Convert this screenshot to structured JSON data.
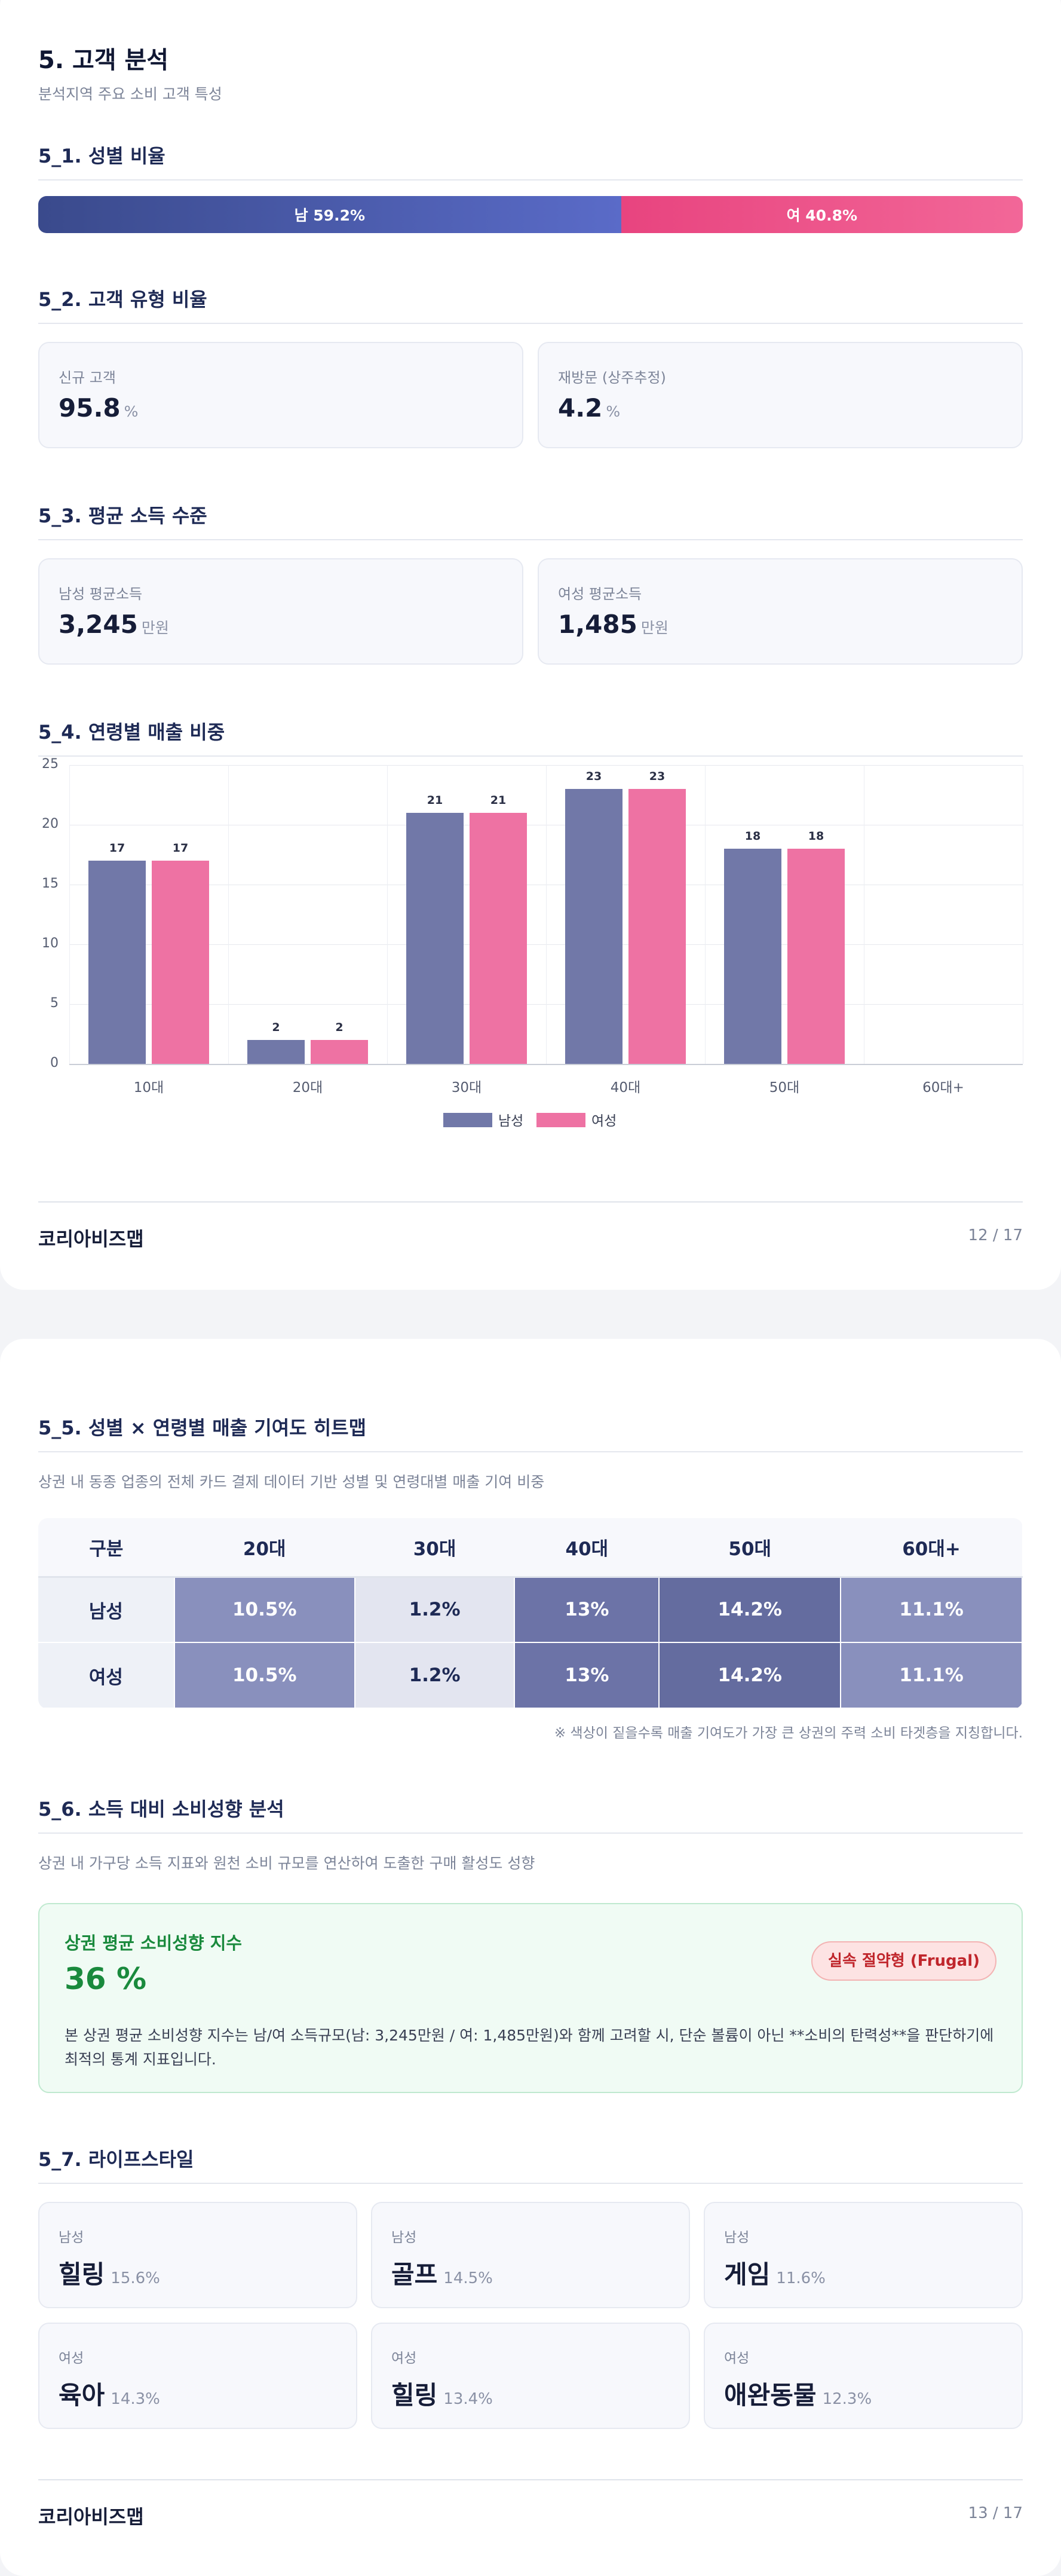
{
  "page1": {
    "title": "5. 고객 분석",
    "subtitle": "분석지역 주요 소비 고객 특성",
    "gender_ratio": {
      "heading": "5_1. 성별 비율",
      "male_label": "남 59.2%",
      "female_label": "여 40.8%",
      "male_value": 59.2,
      "female_value": 40.8
    },
    "customer_type": {
      "heading": "5_2. 고객 유형 비율",
      "new_label": "신규 고객",
      "new_value": "95.8",
      "new_unit": "%",
      "return_label": "재방문 (상주추정)",
      "return_value": "4.2",
      "return_unit": "%"
    },
    "income": {
      "heading": "5_3. 평균 소득 수준",
      "male_label": "남성 평균소득",
      "male_value": "3,245",
      "male_unit": "만원",
      "female_label": "여성 평균소득",
      "female_value": "1,485",
      "female_unit": "만원"
    },
    "age_sales_heading": "5_4. 연령별 매출 비중",
    "footer": {
      "brand": "코리아비즈맵",
      "page": "12 / 17"
    }
  },
  "chart_data": {
    "type": "bar",
    "categories": [
      "10대",
      "20대",
      "30대",
      "40대",
      "50대",
      "60대+"
    ],
    "series": [
      {
        "name": "남성",
        "values": [
          17,
          2,
          21,
          23,
          18,
          0
        ],
        "color": "#7178a8"
      },
      {
        "name": "여성",
        "values": [
          17,
          2,
          21,
          23,
          18,
          0
        ],
        "color": "#ee72a3"
      }
    ],
    "data_labels": [
      "17",
      "2",
      "21",
      "23",
      "18",
      ""
    ],
    "yticks": [
      "0",
      "5",
      "10",
      "15",
      "20",
      "25"
    ],
    "ylim": [
      0,
      25
    ],
    "grid": true,
    "legend_position": "bottom"
  },
  "page2": {
    "heatmap": {
      "heading": "5_5. 성별 × 연령별 매출 기여도 히트맵",
      "description": "상권 내 동종 업종의 전체 카드 결제 데이터 기반 성별 및 연령대별 매출 기여 비중",
      "columns": [
        "구분",
        "20대",
        "30대",
        "40대",
        "50대",
        "60대+"
      ],
      "rows": [
        {
          "label": "남성",
          "cells": [
            "10.5%",
            "1.2%",
            "13%",
            "14.2%",
            "11.1%"
          ]
        },
        {
          "label": "여성",
          "cells": [
            "10.5%",
            "1.2%",
            "13%",
            "14.2%",
            "11.1%"
          ]
        }
      ],
      "cell_colors": [
        "#8990bd",
        "#e3e5f0",
        "#6c73a7",
        "#646c9f",
        "#8990bd"
      ],
      "note": "※ 색상이 짙을수록 매출 기여도가 가장 큰 상권의 주력 소비 타겟층을 지칭합니다."
    },
    "propensity": {
      "heading": "5_6. 소득 대비 소비성향 분석",
      "description": "상권 내 가구당 소득 지표와 원천 소비 규모를 연산하여 도출한 구매 활성도 성향",
      "box_title": "상권 평균 소비성향 지수",
      "value": "36 %",
      "badge": "실속 절약형 (Frugal)",
      "body": "본 상권 평균 소비성향 지수는 남/여 소득규모(남: 3,245만원 / 여: 1,485만원)와 함께 고려할 시, 단순 볼륨이 아닌 **소비의 탄력성**을 판단하기에 최적의 통계 지표입니다."
    },
    "lifestyle": {
      "heading": "5_7. 라이프스타일",
      "items": [
        {
          "gender": "남성",
          "name": "힐링",
          "pct": "15.6%"
        },
        {
          "gender": "남성",
          "name": "골프",
          "pct": "14.5%"
        },
        {
          "gender": "남성",
          "name": "게임",
          "pct": "11.6%"
        },
        {
          "gender": "여성",
          "name": "육아",
          "pct": "14.3%"
        },
        {
          "gender": "여성",
          "name": "힐링",
          "pct": "13.4%"
        },
        {
          "gender": "여성",
          "name": "애완동물",
          "pct": "12.3%"
        }
      ]
    },
    "footer": {
      "brand": "코리아비즈맵",
      "page": "13 / 17"
    }
  }
}
